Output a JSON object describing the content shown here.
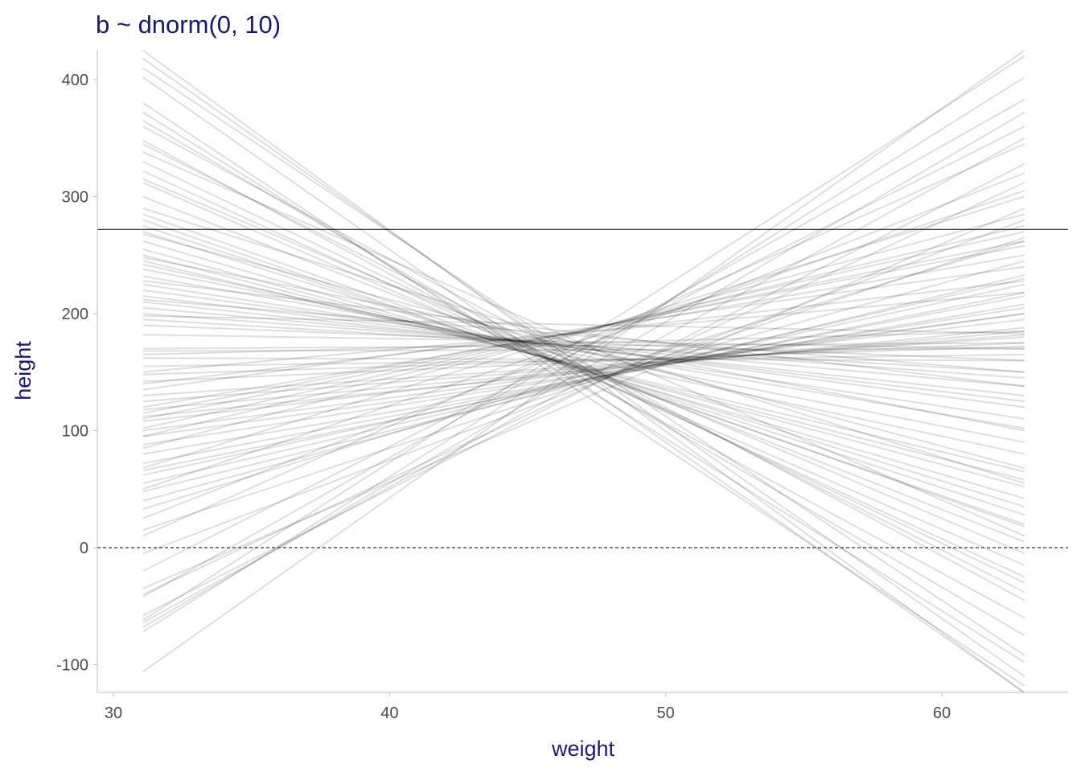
{
  "chart_data": {
    "type": "line",
    "title": "b ~ dnorm(0, 10)",
    "xlabel": "weight",
    "ylabel": "height",
    "xlim": [
      29.4,
      64.5
    ],
    "ylim": [
      -124,
      425
    ],
    "x_ticks": [
      30,
      40,
      50,
      60
    ],
    "y_ticks": [
      -100,
      0,
      100,
      200,
      300,
      400
    ],
    "x_tick_labels": [
      "30",
      "40",
      "50",
      "60"
    ],
    "y_tick_labels": [
      "-100",
      "0",
      "100",
      "200",
      "300",
      "400"
    ],
    "x_range": [
      31.07,
      62.99
    ],
    "reference_lines": [
      {
        "y": 0,
        "style": "dashed",
        "color": "#000000"
      },
      {
        "y": 272,
        "style": "solid",
        "color": "#000000"
      }
    ],
    "line_color": "#000000",
    "line_alpha": 0.13,
    "series": [
      {
        "values": [
          -106,
          425
        ]
      },
      {
        "values": [
          -72,
          402
        ]
      },
      {
        "values": [
          -68,
          372
        ]
      },
      {
        "values": [
          -64,
          350
        ]
      },
      {
        "values": [
          -58,
          328
        ]
      },
      {
        "values": [
          -40,
          312
        ]
      },
      {
        "values": [
          -35,
          290
        ]
      },
      {
        "values": [
          -5,
          280
        ]
      },
      {
        "values": [
          15,
          265
        ]
      },
      {
        "values": [
          33,
          262
        ]
      },
      {
        "values": [
          40,
          245
        ]
      },
      {
        "values": [
          48,
          233
        ]
      },
      {
        "values": [
          55,
          230
        ]
      },
      {
        "values": [
          62,
          225
        ]
      },
      {
        "values": [
          66,
          218
        ]
      },
      {
        "values": [
          72,
          215
        ]
      },
      {
        "values": [
          80,
          208
        ]
      },
      {
        "values": [
          88,
          205
        ]
      },
      {
        "values": [
          95,
          200
        ]
      },
      {
        "values": [
          100,
          200
        ]
      },
      {
        "values": [
          108,
          195
        ]
      },
      {
        "values": [
          112,
          188
        ]
      },
      {
        "values": [
          118,
          185
        ]
      },
      {
        "values": [
          125,
          182
        ]
      },
      {
        "values": [
          130,
          180
        ]
      },
      {
        "values": [
          142,
          175
        ]
      },
      {
        "values": [
          148,
          172
        ]
      },
      {
        "values": [
          155,
          165
        ]
      },
      {
        "values": [
          162,
          160
        ]
      },
      {
        "values": [
          168,
          170
        ]
      },
      {
        "values": [
          -62,
          420
        ]
      },
      {
        "values": [
          -42,
          383
        ]
      },
      {
        "values": [
          -20,
          360
        ]
      },
      {
        "values": [
          10,
          345
        ]
      },
      {
        "values": [
          25,
          320
        ]
      },
      {
        "values": [
          50,
          305
        ]
      },
      {
        "values": [
          68,
          300
        ]
      },
      {
        "values": [
          85,
          285
        ]
      },
      {
        "values": [
          102,
          270
        ]
      },
      {
        "values": [
          115,
          258
        ]
      },
      {
        "values": [
          120,
          250
        ]
      },
      {
        "values": [
          135,
          240
        ]
      },
      {
        "values": [
          140,
          228
        ]
      },
      {
        "values": [
          150,
          218
        ]
      },
      {
        "values": [
          110,
          262
        ]
      },
      {
        "values": [
          95,
          275
        ]
      },
      {
        "values": [
          425,
          -124
        ]
      },
      {
        "values": [
          418,
          -110
        ]
      },
      {
        "values": [
          410,
          -92
        ]
      },
      {
        "values": [
          402,
          -124
        ]
      },
      {
        "values": [
          380,
          -118
        ]
      },
      {
        "values": [
          372,
          -98
        ]
      },
      {
        "values": [
          365,
          -75
        ]
      },
      {
        "values": [
          348,
          -60
        ]
      },
      {
        "values": [
          345,
          -38
        ]
      },
      {
        "values": [
          330,
          -30
        ]
      },
      {
        "values": [
          322,
          -25
        ]
      },
      {
        "values": [
          312,
          -15
        ]
      },
      {
        "values": [
          300,
          5
        ]
      },
      {
        "values": [
          285,
          18
        ]
      },
      {
        "values": [
          280,
          20
        ]
      },
      {
        "values": [
          275,
          28
        ]
      },
      {
        "values": [
          270,
          35
        ]
      },
      {
        "values": [
          262,
          42
        ]
      },
      {
        "values": [
          255,
          52
        ]
      },
      {
        "values": [
          250,
          58
        ]
      },
      {
        "values": [
          245,
          65
        ]
      },
      {
        "values": [
          242,
          80
        ]
      },
      {
        "values": [
          238,
          90
        ]
      },
      {
        "values": [
          232,
          102
        ]
      },
      {
        "values": [
          225,
          110
        ]
      },
      {
        "values": [
          220,
          120
        ]
      },
      {
        "values": [
          215,
          125
        ]
      },
      {
        "values": [
          210,
          130
        ]
      },
      {
        "values": [
          205,
          138
        ]
      },
      {
        "values": [
          200,
          145
        ]
      },
      {
        "values": [
          195,
          150
        ]
      },
      {
        "values": [
          190,
          160
        ]
      },
      {
        "values": [
          182,
          170
        ]
      },
      {
        "values": [
          170,
          175
        ]
      },
      {
        "values": [
          165,
          185
        ]
      },
      {
        "values": [
          360,
          -45
        ]
      },
      {
        "values": [
          338,
          10
        ]
      },
      {
        "values": [
          315,
          -5
        ]
      },
      {
        "values": [
          290,
          55
        ]
      },
      {
        "values": [
          268,
          68
        ]
      },
      {
        "values": [
          248,
          100
        ]
      },
      {
        "values": [
          228,
          138
        ]
      },
      {
        "values": [
          212,
          150
        ]
      },
      {
        "values": [
          198,
          183
        ]
      }
    ]
  }
}
